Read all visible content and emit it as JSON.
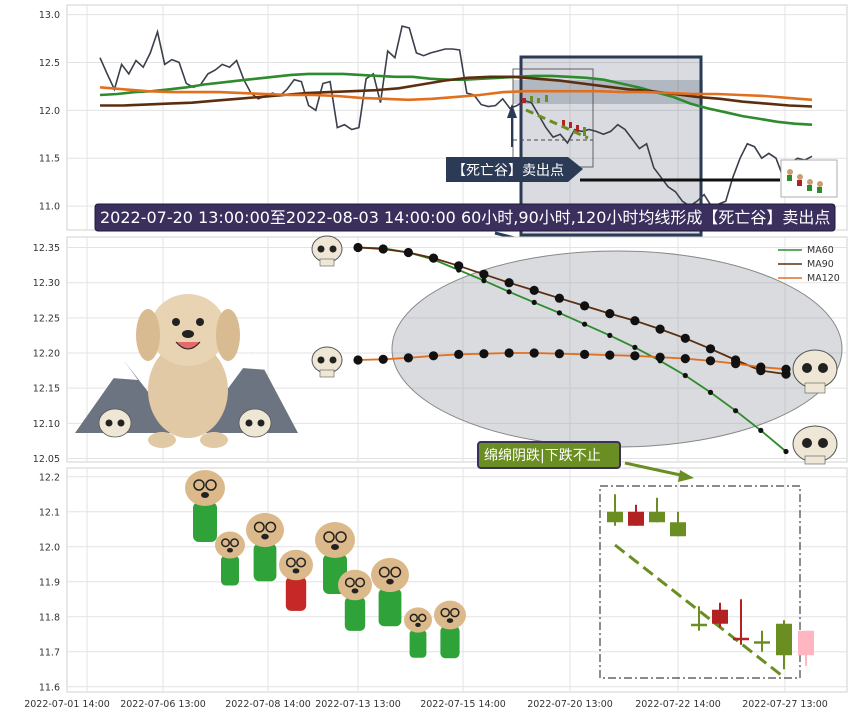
{
  "chart_data": [
    {
      "type": "line",
      "panel": "top",
      "ylim": [
        10.75,
        13.1
      ],
      "yticks": [
        "13.0",
        "12.5",
        "12.0",
        "11.5",
        "11.0"
      ],
      "grid": true,
      "series": [
        {
          "key": "price",
          "color": "#3a3f4b",
          "values": [
            12.55,
            12.38,
            12.22,
            12.48,
            12.38,
            12.52,
            12.45,
            12.6,
            12.82,
            12.48,
            12.53,
            12.5,
            12.28,
            12.24,
            12.27,
            12.38,
            12.42,
            12.48,
            12.45,
            12.52,
            12.32,
            12.18,
            12.12,
            12.15,
            12.18,
            12.15,
            12.22,
            12.32,
            12.3,
            12.05,
            12.0,
            12.28,
            12.3,
            11.82,
            11.85,
            11.8,
            11.82,
            12.33,
            12.38,
            12.08,
            12.62,
            12.55,
            12.88,
            12.86,
            12.6,
            12.57,
            12.6,
            12.62,
            12.64,
            12.64,
            12.63,
            12.18,
            12.16,
            12.06,
            12.04,
            12.05,
            12.12,
            12.02,
            12.05,
            12.1,
            12.08,
            11.95,
            11.82,
            11.72,
            11.75,
            11.66,
            11.8,
            11.78,
            11.8,
            11.78,
            11.75,
            11.78,
            11.85,
            11.8,
            11.7,
            11.6,
            11.65,
            11.4,
            11.3,
            11.2,
            11.15,
            11.05,
            11.0,
            11.05,
            11.12,
            11.0,
            11.02,
            11.05,
            11.3,
            11.5,
            11.65,
            11.62,
            11.5,
            11.55,
            11.5,
            11.3,
            11.45,
            11.5,
            11.48,
            11.52
          ]
        },
        {
          "key": "ma60",
          "color": "#2e8b2e",
          "values": [
            12.16,
            12.17,
            12.19,
            12.2,
            12.22,
            12.24,
            12.27,
            12.29,
            12.31,
            12.33,
            12.35,
            12.37,
            12.38,
            12.38,
            12.38,
            12.37,
            12.36,
            12.35,
            12.35,
            12.33,
            12.32,
            12.32,
            12.33,
            12.34,
            12.35,
            12.36,
            12.36,
            12.35,
            12.34,
            12.32,
            12.28,
            12.24,
            12.19,
            12.14,
            12.07,
            12.02,
            11.98,
            11.94,
            11.91,
            11.88,
            11.86,
            11.85
          ]
        },
        {
          "key": "ma90",
          "color": "#5c2e10",
          "values": [
            12.05,
            12.05,
            12.06,
            12.07,
            12.08,
            12.1,
            12.12,
            12.14,
            12.16,
            12.18,
            12.19,
            12.2,
            12.21,
            12.23,
            12.27,
            12.31,
            12.34,
            12.35,
            12.35,
            12.33,
            12.31,
            12.28,
            12.25,
            12.22,
            12.2,
            12.17,
            12.14,
            12.12,
            12.09,
            12.07,
            12.05,
            12.04
          ]
        },
        {
          "key": "ma120",
          "color": "#e07020",
          "values": [
            12.24,
            12.22,
            12.2,
            12.19,
            12.19,
            12.19,
            12.18,
            12.17,
            12.16,
            12.16,
            12.15,
            12.13,
            12.12,
            12.11,
            12.12,
            12.14,
            12.16,
            12.19,
            12.2,
            12.2,
            12.2,
            12.2,
            12.19,
            12.19,
            12.18,
            12.17,
            12.17,
            12.16,
            12.15,
            12.13,
            12.11
          ]
        }
      ],
      "annotation_label": "【死亡谷】卖出点"
    },
    {
      "type": "line",
      "panel": "middle",
      "ylim": [
        12.045,
        12.365
      ],
      "yticks": [
        "12.35",
        "12.30",
        "12.25",
        "12.20",
        "12.15",
        "12.10",
        "12.05"
      ],
      "grid": true,
      "legend": {
        "position": "top-right",
        "items": [
          "MA60",
          "MA90",
          "MA120"
        ]
      },
      "series": [
        {
          "name": "MA60",
          "color": "#2e8b2e",
          "values": [
            12.35,
            12.349,
            12.343,
            12.333,
            12.318,
            12.303,
            12.287,
            12.272,
            12.257,
            12.241,
            12.225,
            12.208,
            12.189,
            12.168,
            12.144,
            12.118,
            12.09,
            12.06
          ]
        },
        {
          "name": "MA90",
          "color": "#5c2e10",
          "values": [
            12.35,
            12.348,
            12.343,
            12.335,
            12.324,
            12.312,
            12.3,
            12.289,
            12.278,
            12.267,
            12.256,
            12.246,
            12.234,
            12.221,
            12.206,
            12.19,
            12.175,
            12.17
          ]
        },
        {
          "name": "MA120",
          "color": "#e07020",
          "values": [
            12.19,
            12.191,
            12.193,
            12.196,
            12.198,
            12.199,
            12.2,
            12.2,
            12.199,
            12.198,
            12.197,
            12.196,
            12.194,
            12.192,
            12.189,
            12.185,
            12.18,
            12.177
          ]
        }
      ]
    },
    {
      "type": "candlestick",
      "panel": "bottom",
      "ylim": [
        11.585,
        12.225
      ],
      "yticks": [
        "12.2",
        "12.1",
        "12.0",
        "11.9",
        "11.8",
        "11.7",
        "11.6"
      ],
      "grid": true,
      "x_tick_labels": [
        "2022-07-01 14:00",
        "2022-07-06 13:00",
        "2022-07-08 14:00",
        "2022-07-13 13:00",
        "2022-07-15 14:00",
        "2022-07-20 13:00",
        "2022-07-22 14:00",
        "2022-07-27 13:00"
      ],
      "candles": [
        {
          "open": 12.07,
          "close": 12.1,
          "high": 12.15,
          "low": 12.06,
          "color": "#6b8e23"
        },
        {
          "open": 12.1,
          "close": 12.06,
          "high": 12.12,
          "low": 12.06,
          "color": "#b22222"
        },
        {
          "open": 12.07,
          "close": 12.1,
          "high": 12.14,
          "low": 12.07,
          "color": "#6b8e23"
        },
        {
          "open": 12.03,
          "close": 12.07,
          "high": 12.1,
          "low": 12.03,
          "color": "#6b8e23"
        },
        {
          "open": 11.78,
          "close": 11.78,
          "high": 11.83,
          "low": 11.76,
          "color": "#6b8e23"
        },
        {
          "open": 11.82,
          "close": 11.78,
          "high": 11.84,
          "low": 11.77,
          "color": "#b22222"
        },
        {
          "open": 11.74,
          "close": 11.74,
          "high": 11.85,
          "low": 11.72,
          "color": "#b22222"
        },
        {
          "open": 11.73,
          "close": 11.73,
          "high": 11.76,
          "low": 11.7,
          "color": "#6b8e23"
        },
        {
          "open": 11.69,
          "close": 11.78,
          "high": 11.79,
          "low": 11.65,
          "color": "#6b8e23"
        },
        {
          "open": 11.69,
          "close": 11.76,
          "high": 11.76,
          "low": 11.66,
          "color": "#ffb6c1"
        }
      ]
    }
  ],
  "texts": {
    "banner": "2022-07-20 13:00:00至2022-08-03 14:00:00 60小时,90小时,120小时均线形成【死亡谷】卖出点",
    "bottom_label": "绵绵阴跌|下跌不止",
    "sell_label": "【死亡谷】卖出点"
  },
  "colors": {
    "bearish": "#b22222",
    "bullish": "#6b8e23",
    "annotation_box": "#2b3a55",
    "label_box": "#6b8e23"
  }
}
